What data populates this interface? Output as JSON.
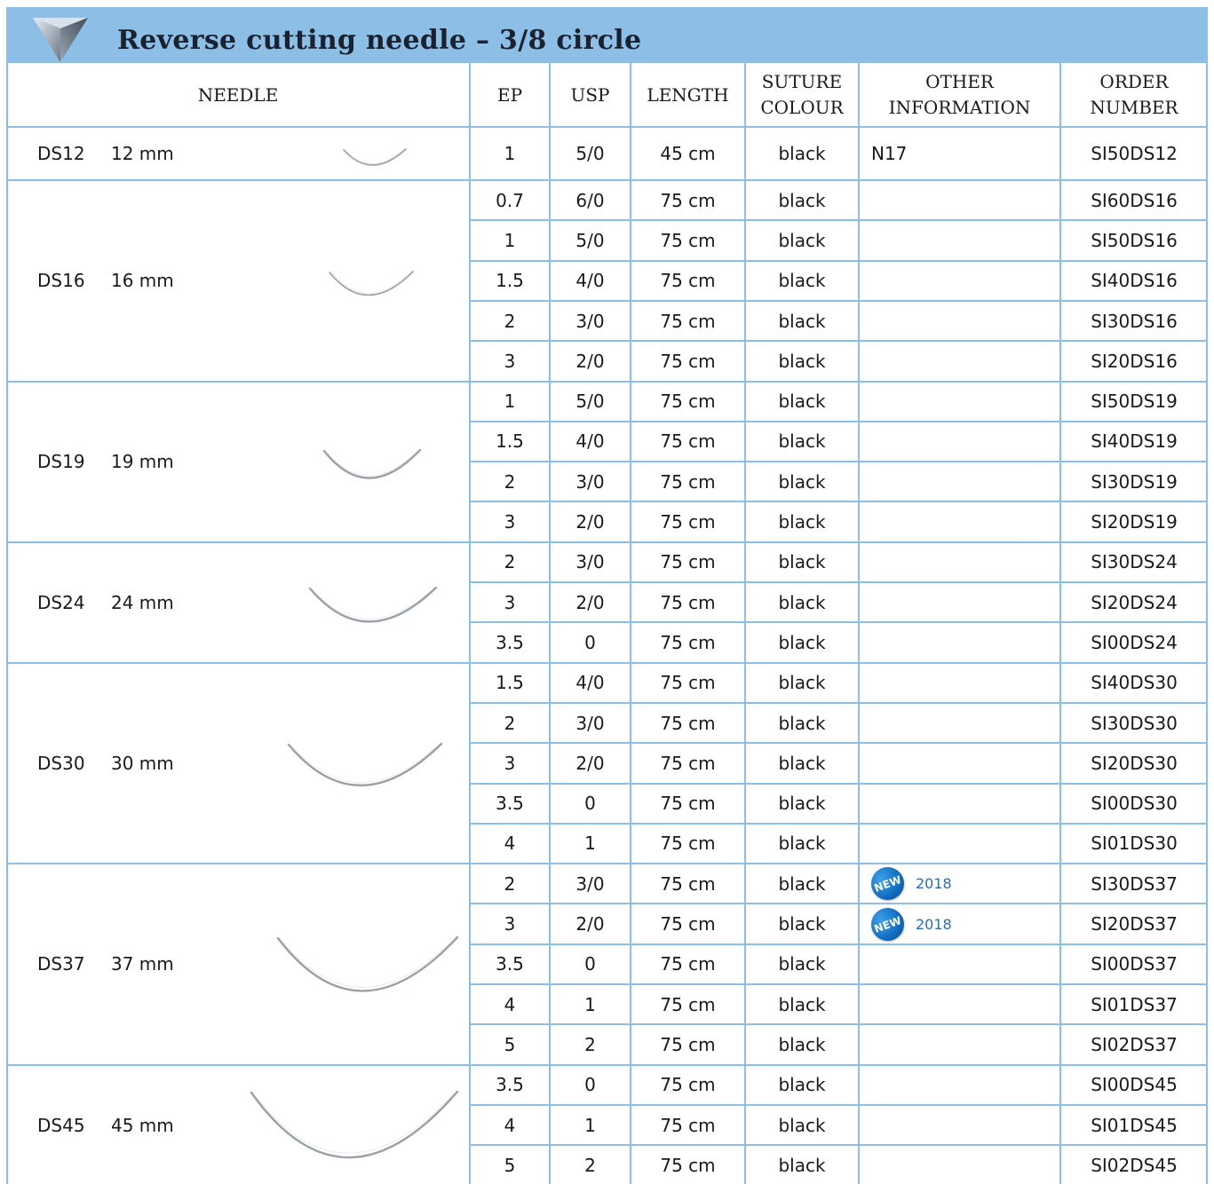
{
  "title": "Reverse cutting needle – 3/8 circle",
  "colors": {
    "accent": "#8dbfe6",
    "badge": "#1677c9"
  },
  "icons": {
    "title": "triangle-cut-icon",
    "badge": "new-badge-icon"
  },
  "headers": {
    "needle": "NEEDLE",
    "ep": "EP",
    "usp": "USP",
    "length": "LENGTH",
    "suture_colour_1": "SUTURE",
    "suture_colour_2": "COLOUR",
    "other_1": "OTHER",
    "other_2": "INFORMATION",
    "order_1": "ORDER",
    "order_2": "NUMBER"
  },
  "groups": [
    {
      "code": "DS12",
      "size": "12 mm",
      "rows": [
        {
          "ep": "1",
          "usp": "5/0",
          "length": "45 cm",
          "colour": "black",
          "info": "N17",
          "order": "SI50DS12"
        }
      ]
    },
    {
      "code": "DS16",
      "size": "16 mm",
      "rows": [
        {
          "ep": "0.7",
          "usp": "6/0",
          "length": "75 cm",
          "colour": "black",
          "info": "",
          "order": "SI60DS16"
        },
        {
          "ep": "1",
          "usp": "5/0",
          "length": "75 cm",
          "colour": "black",
          "info": "",
          "order": "SI50DS16"
        },
        {
          "ep": "1.5",
          "usp": "4/0",
          "length": "75 cm",
          "colour": "black",
          "info": "",
          "order": "SI40DS16"
        },
        {
          "ep": "2",
          "usp": "3/0",
          "length": "75 cm",
          "colour": "black",
          "info": "",
          "order": "SI30DS16"
        },
        {
          "ep": "3",
          "usp": "2/0",
          "length": "75 cm",
          "colour": "black",
          "info": "",
          "order": "SI20DS16"
        }
      ]
    },
    {
      "code": "DS19",
      "size": "19 mm",
      "rows": [
        {
          "ep": "1",
          "usp": "5/0",
          "length": "75 cm",
          "colour": "black",
          "info": "",
          "order": "SI50DS19"
        },
        {
          "ep": "1.5",
          "usp": "4/0",
          "length": "75 cm",
          "colour": "black",
          "info": "",
          "order": "SI40DS19"
        },
        {
          "ep": "2",
          "usp": "3/0",
          "length": "75 cm",
          "colour": "black",
          "info": "",
          "order": "SI30DS19"
        },
        {
          "ep": "3",
          "usp": "2/0",
          "length": "75 cm",
          "colour": "black",
          "info": "",
          "order": "SI20DS19"
        }
      ]
    },
    {
      "code": "DS24",
      "size": "24 mm",
      "rows": [
        {
          "ep": "2",
          "usp": "3/0",
          "length": "75 cm",
          "colour": "black",
          "info": "",
          "order": "SI30DS24"
        },
        {
          "ep": "3",
          "usp": "2/0",
          "length": "75 cm",
          "colour": "black",
          "info": "",
          "order": "SI20DS24"
        },
        {
          "ep": "3.5",
          "usp": "0",
          "length": "75 cm",
          "colour": "black",
          "info": "",
          "order": "SI00DS24"
        }
      ]
    },
    {
      "code": "DS30",
      "size": "30 mm",
      "rows": [
        {
          "ep": "1.5",
          "usp": "4/0",
          "length": "75 cm",
          "colour": "black",
          "info": "",
          "order": "SI40DS30"
        },
        {
          "ep": "2",
          "usp": "3/0",
          "length": "75 cm",
          "colour": "black",
          "info": "",
          "order": "SI30DS30"
        },
        {
          "ep": "3",
          "usp": "2/0",
          "length": "75 cm",
          "colour": "black",
          "info": "",
          "order": "SI20DS30"
        },
        {
          "ep": "3.5",
          "usp": "0",
          "length": "75 cm",
          "colour": "black",
          "info": "",
          "order": "SI00DS30"
        },
        {
          "ep": "4",
          "usp": "1",
          "length": "75 cm",
          "colour": "black",
          "info": "",
          "order": "SI01DS30"
        }
      ]
    },
    {
      "code": "DS37",
      "size": "37 mm",
      "rows": [
        {
          "ep": "2",
          "usp": "3/0",
          "length": "75 cm",
          "colour": "black",
          "info": "",
          "badge": "NEW",
          "badge_year": "2018",
          "order": "SI30DS37"
        },
        {
          "ep": "3",
          "usp": "2/0",
          "length": "75 cm",
          "colour": "black",
          "info": "",
          "badge": "NEW",
          "badge_year": "2018",
          "order": "SI20DS37"
        },
        {
          "ep": "3.5",
          "usp": "0",
          "length": "75 cm",
          "colour": "black",
          "info": "",
          "order": "SI00DS37"
        },
        {
          "ep": "4",
          "usp": "1",
          "length": "75 cm",
          "colour": "black",
          "info": "",
          "order": "SI01DS37"
        },
        {
          "ep": "5",
          "usp": "2",
          "length": "75 cm",
          "colour": "black",
          "info": "",
          "order": "SI02DS37"
        }
      ]
    },
    {
      "code": "DS45",
      "size": "45 mm",
      "rows": [
        {
          "ep": "3.5",
          "usp": "0",
          "length": "75 cm",
          "colour": "black",
          "info": "",
          "order": "SI00DS45"
        },
        {
          "ep": "4",
          "usp": "1",
          "length": "75 cm",
          "colour": "black",
          "info": "",
          "order": "SI01DS45"
        },
        {
          "ep": "5",
          "usp": "2",
          "length": "75 cm",
          "colour": "black",
          "info": "",
          "order": "SI02DS45"
        }
      ]
    }
  ]
}
